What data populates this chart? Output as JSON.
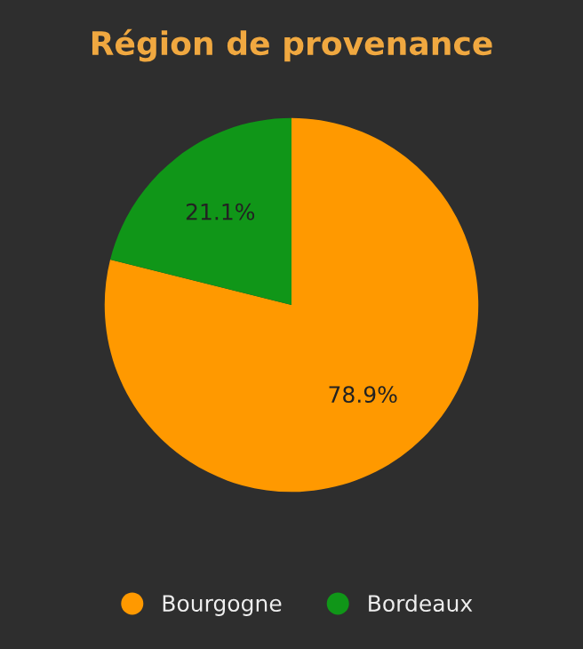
{
  "chart_data": {
    "type": "pie",
    "title": "Région de provenance",
    "categories": [
      "Bourgogne",
      "Bordeaux"
    ],
    "values": [
      78.9,
      21.1
    ],
    "colors": [
      "#ff9900",
      "#109618"
    ],
    "value_labels": [
      "78.9%",
      "21.1%"
    ],
    "legend": "bottom"
  }
}
